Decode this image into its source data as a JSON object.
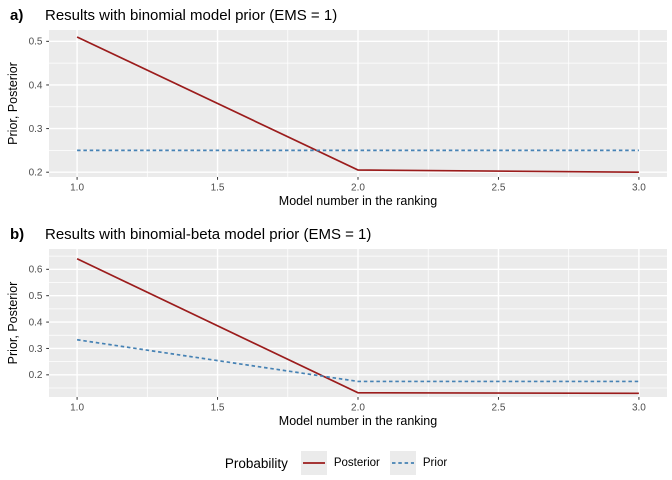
{
  "chart_data": [
    {
      "type": "line",
      "tag": "a)",
      "title": "Results with binomial model prior (EMS = 1)",
      "xlabel": "Model number in the ranking",
      "ylabel": "Prior, Posterior",
      "xlim": [
        0.9,
        3.1
      ],
      "ylim": [
        0.189,
        0.526
      ],
      "x_ticks": [
        1,
        1.5,
        2,
        2.5,
        3
      ],
      "x_tick_labels": [
        "1.0",
        "1.5",
        "2.0",
        "2.5",
        "3.0"
      ],
      "x_minor": [
        1.25,
        1.75,
        2.25,
        2.75
      ],
      "y_ticks": [
        0.2,
        0.3,
        0.4,
        0.5
      ],
      "y_tick_labels": [
        "0.2",
        "0.3",
        "0.4",
        "0.5"
      ],
      "y_minor": [
        0.25,
        0.35,
        0.45
      ],
      "x": [
        1,
        2,
        3
      ],
      "series": [
        {
          "name": "Posterior",
          "dash": "solid",
          "color": "#9b1c1c",
          "values": [
            0.51,
            0.205,
            0.2
          ]
        },
        {
          "name": "Prior",
          "dash": "dashed",
          "color": "#4682b4",
          "values": [
            0.25,
            0.25,
            0.25
          ]
        }
      ],
      "grid": true,
      "legend_position": "bottom"
    },
    {
      "type": "line",
      "tag": "b)",
      "title": "Results with binomial-beta model prior (EMS = 1)",
      "xlabel": "Model number in the ranking",
      "ylabel": "Prior, Posterior",
      "xlim": [
        0.9,
        3.1
      ],
      "ylim": [
        0.116,
        0.677
      ],
      "x_ticks": [
        1,
        1.5,
        2,
        2.5,
        3
      ],
      "x_tick_labels": [
        "1.0",
        "1.5",
        "2.0",
        "2.5",
        "3.0"
      ],
      "x_minor": [
        1.25,
        1.75,
        2.25,
        2.75
      ],
      "y_ticks": [
        0.2,
        0.3,
        0.4,
        0.5,
        0.6
      ],
      "y_tick_labels": [
        "0.2",
        "0.3",
        "0.4",
        "0.5",
        "0.6"
      ],
      "y_minor": [
        0.15,
        0.25,
        0.35,
        0.45,
        0.55,
        0.65
      ],
      "x": [
        1,
        2,
        3
      ],
      "series": [
        {
          "name": "Posterior",
          "dash": "solid",
          "color": "#9b1c1c",
          "values": [
            0.64,
            0.132,
            0.13
          ]
        },
        {
          "name": "Prior",
          "dash": "dashed",
          "color": "#4682b4",
          "values": [
            0.333,
            0.175,
            0.175
          ]
        }
      ],
      "grid": true,
      "legend_position": "bottom"
    }
  ],
  "legend": {
    "title": "Probability",
    "items": [
      {
        "label": "Posterior",
        "style": "solid"
      },
      {
        "label": "Prior",
        "style": "dashed"
      }
    ]
  },
  "colors": {
    "posterior": "#9b1c1c",
    "prior": "#4682b4",
    "panel_bg": "#ebebeb",
    "grid": "#ffffff",
    "tick_text": "#4d4d4d",
    "legend_key_bg": "#ebebeb"
  }
}
